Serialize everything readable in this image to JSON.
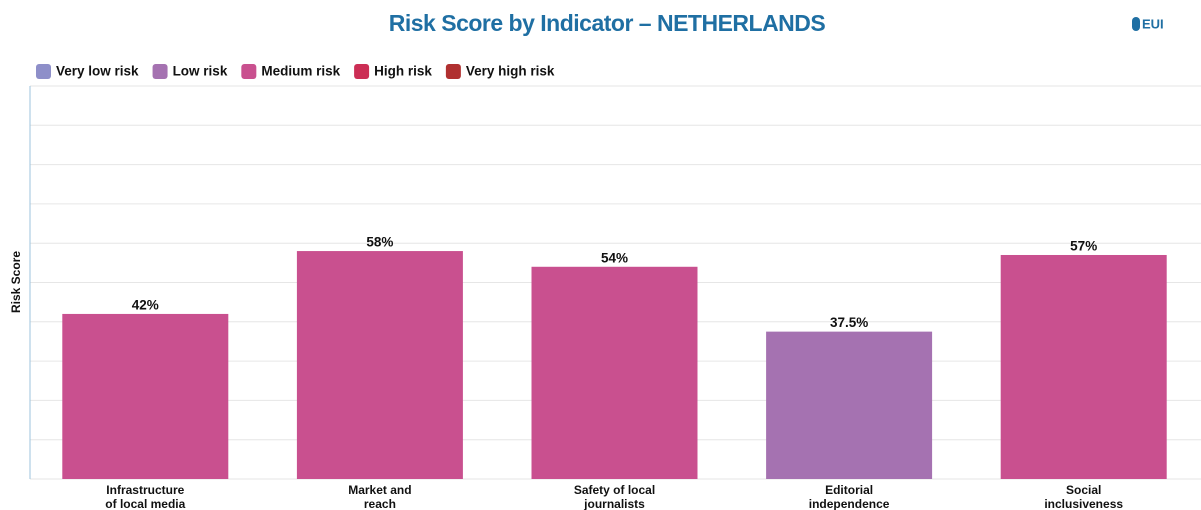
{
  "chart_data": {
    "type": "bar",
    "title": "Risk Score by Indicator – NETHERLANDS",
    "logo": "EUI",
    "y_label": "Risk Score",
    "legend": [
      {
        "name": "Very low risk",
        "color": "#8e8fc9"
      },
      {
        "name": "Low risk",
        "color": "#a572b1"
      },
      {
        "name": "Medium risk",
        "color": "#c9508f"
      },
      {
        "name": "High risk",
        "color": "#cc2e55"
      },
      {
        "name": "Very high risk",
        "color": "#b03030"
      }
    ],
    "categories": [
      "Infrastructure\nof local media",
      "Market and\nreach",
      "Safety of local\njournalists",
      "Editorial\nindependence",
      "Social\ninclusiveness"
    ],
    "values": [
      42,
      58,
      54,
      37.5,
      57
    ],
    "value_labels": [
      "42%",
      "58%",
      "54%",
      "37.5%",
      "57%"
    ],
    "colors": [
      "#c9508f",
      "#c9508f",
      "#c9508f",
      "#a572b1",
      "#c9508f"
    ],
    "ylim": [
      0,
      100
    ],
    "yticks": [
      0,
      10,
      20,
      30,
      40,
      50,
      60,
      70,
      80,
      90,
      100
    ],
    "grid": true
  }
}
